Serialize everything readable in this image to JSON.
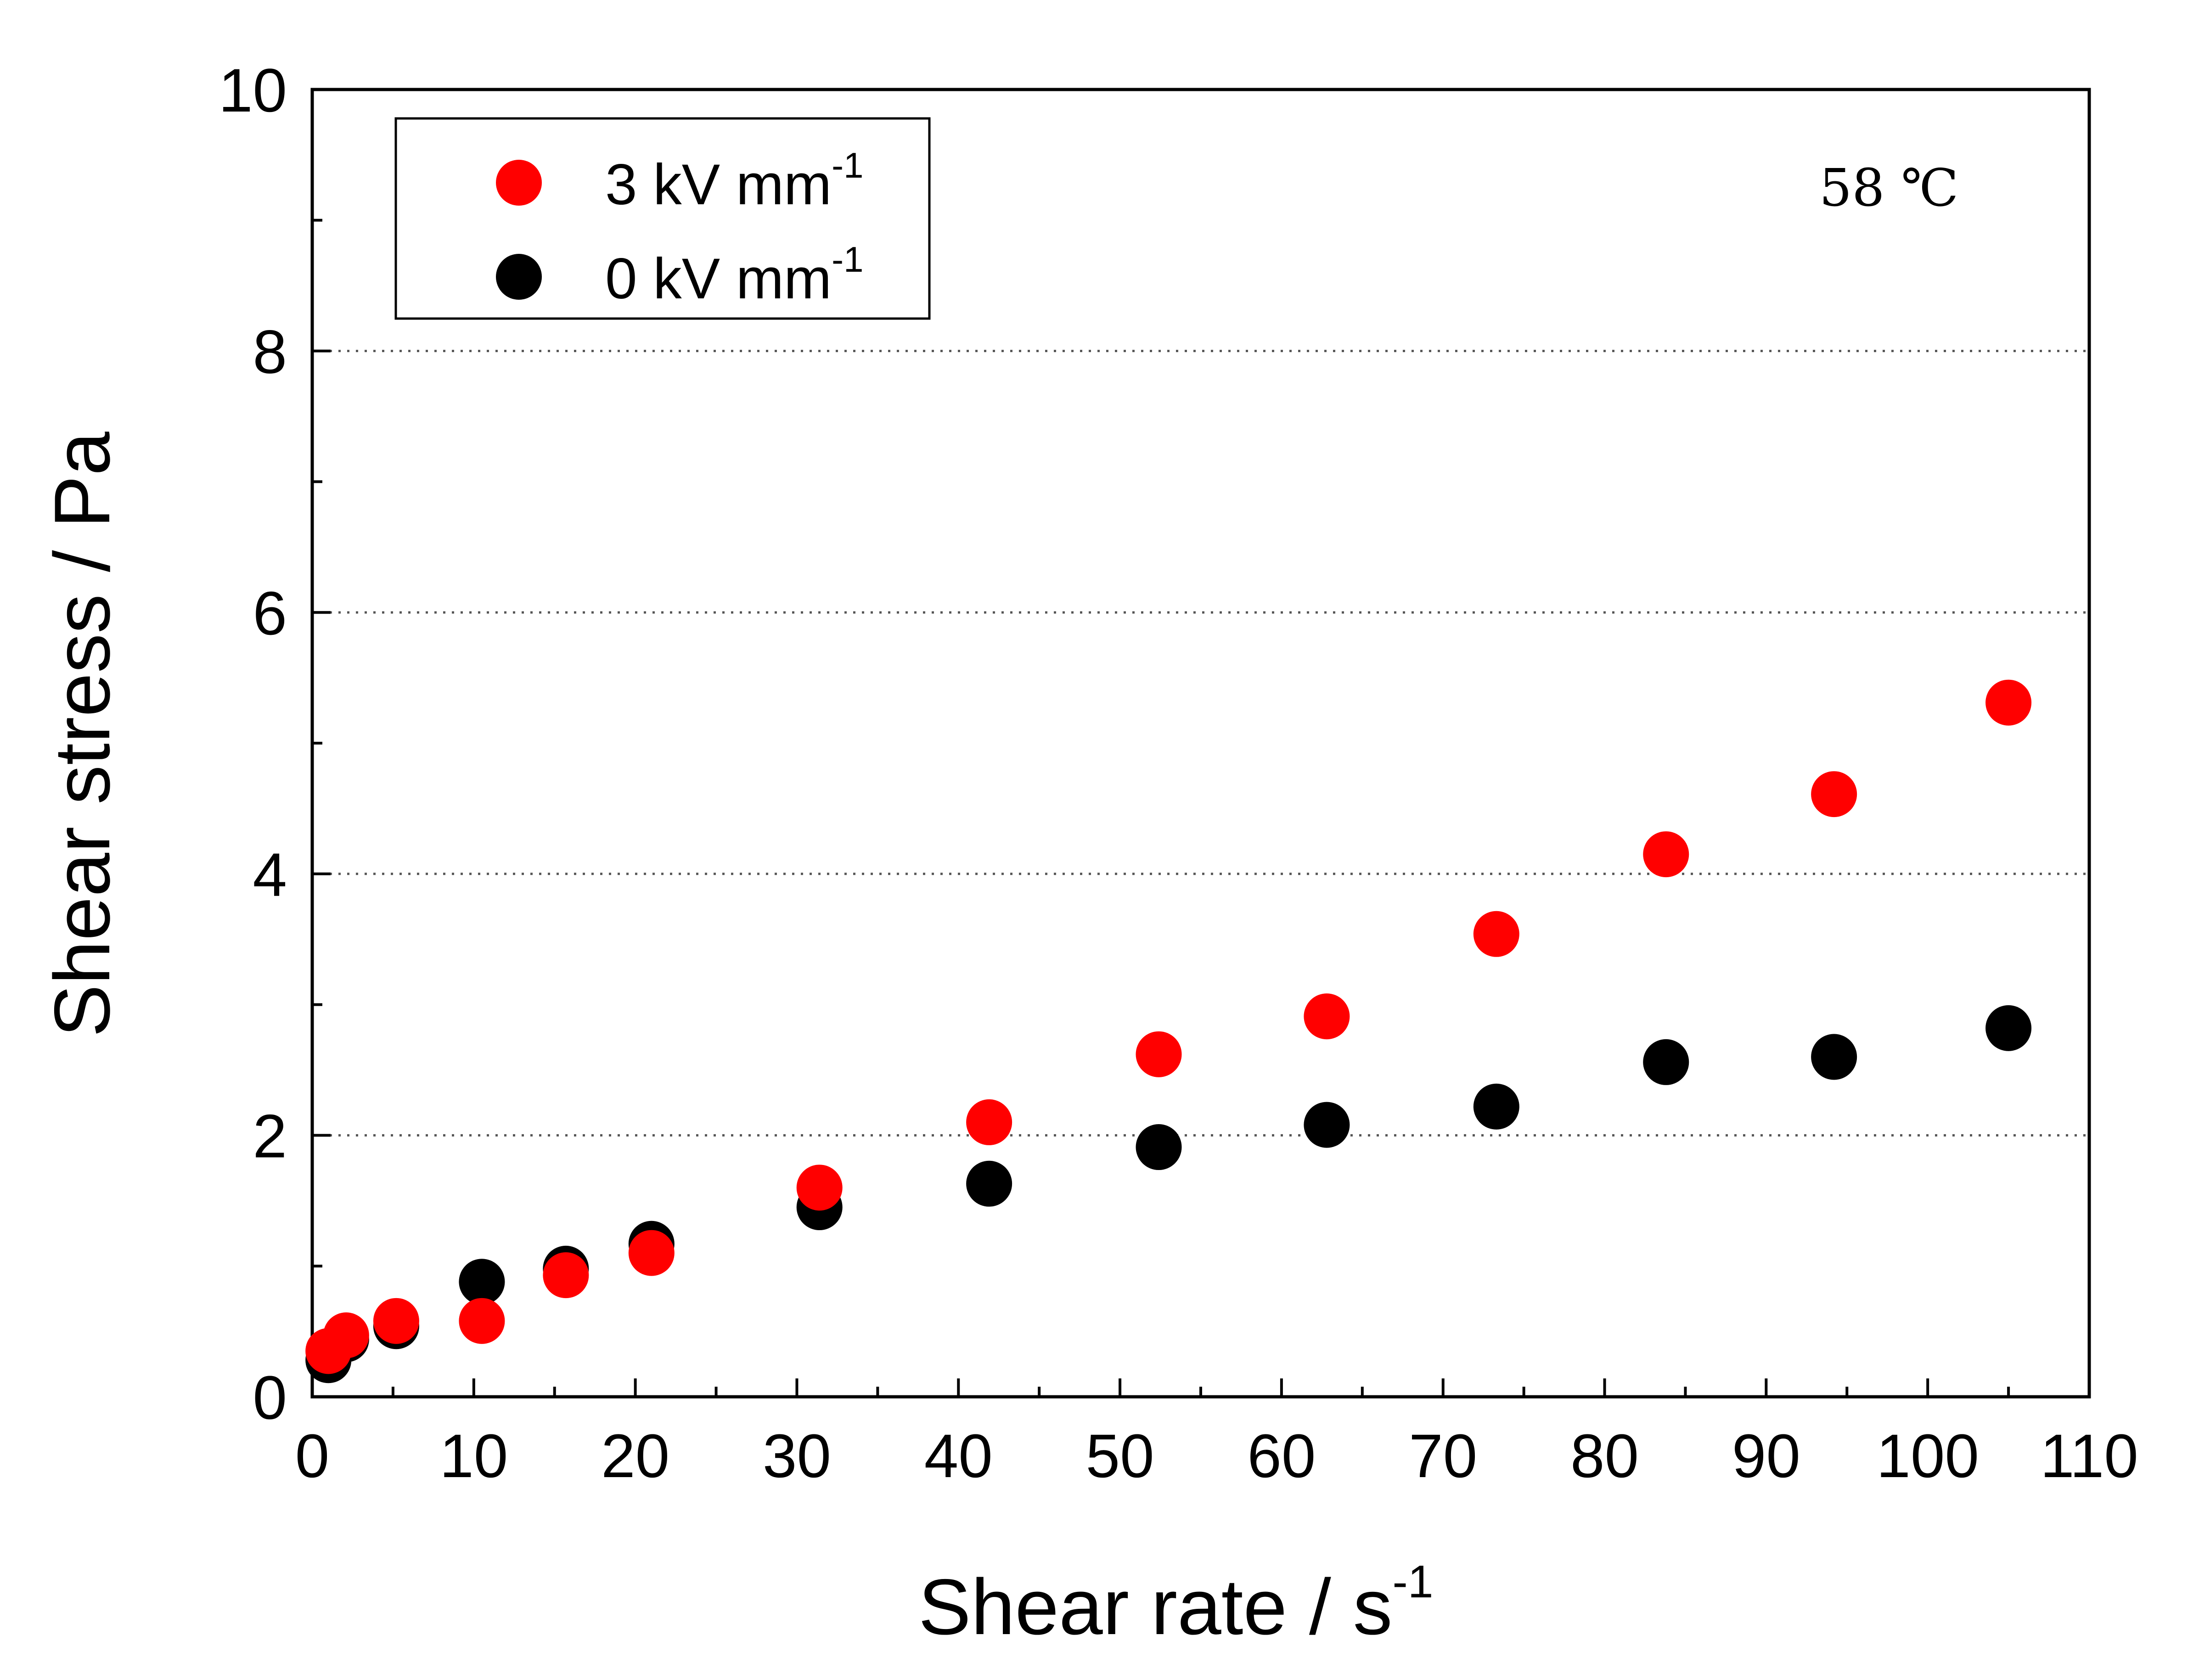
{
  "chart_data": {
    "type": "scatter",
    "title": "",
    "xlabel": "Shear rate / s",
    "xlabel_sup": "-1",
    "ylabel": "Shear stress / Pa",
    "xlim": [
      0,
      110
    ],
    "ylim": [
      0,
      10
    ],
    "xticks": [
      0,
      10,
      20,
      30,
      40,
      50,
      60,
      70,
      80,
      90,
      100,
      110
    ],
    "yticks": [
      0,
      2,
      4,
      6,
      8,
      10
    ],
    "grid": "horizontal dotted at 2, 4, 6, 8",
    "legend_position": "top-left",
    "annotation": "58 ℃",
    "series": [
      {
        "name": "3 kV mm",
        "name_sup": "-1",
        "color": "#ff0000",
        "x": [
          1.0,
          2.1,
          5.2,
          10.5,
          15.7,
          21.0,
          31.4,
          41.9,
          52.4,
          62.8,
          73.3,
          83.8,
          94.2,
          105.0
        ],
        "y": [
          0.35,
          0.47,
          0.58,
          0.58,
          0.93,
          1.1,
          1.6,
          2.1,
          2.62,
          2.91,
          3.54,
          4.15,
          4.61,
          5.31
        ]
      },
      {
        "name": "0 kV mm",
        "name_sup": "-1",
        "color": "#000000",
        "x": [
          1.0,
          2.1,
          5.2,
          10.5,
          15.7,
          21.0,
          31.4,
          41.9,
          52.4,
          62.8,
          73.3,
          83.8,
          94.2,
          105.0
        ],
        "y": [
          0.28,
          0.44,
          0.54,
          0.88,
          0.98,
          1.17,
          1.45,
          1.63,
          1.91,
          2.08,
          2.22,
          2.56,
          2.6,
          2.82
        ]
      }
    ]
  }
}
